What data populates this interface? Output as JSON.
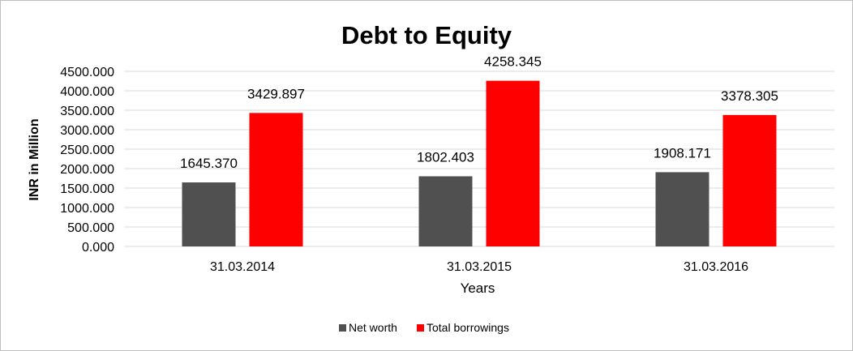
{
  "chart_data": {
    "type": "bar",
    "title": "Debt to Equity",
    "xlabel": "Years",
    "ylabel": "INR in Million",
    "categories": [
      "31.03.2014",
      "31.03.2015",
      "31.03.2016"
    ],
    "series": [
      {
        "name": "Net worth",
        "color": "#505050",
        "values": [
          1645.37,
          1802.403,
          1908.171
        ],
        "labels": [
          "1645.370",
          "1802.403",
          "1908.171"
        ]
      },
      {
        "name": "Total borrowings",
        "color": "#ff0000",
        "values": [
          3429.897,
          4258.345,
          3378.305
        ],
        "labels": [
          "3429.897",
          "4258.345",
          "3378.305"
        ]
      }
    ],
    "ylim": [
      0,
      4500
    ],
    "yticks": [
      0,
      500,
      1000,
      1500,
      2000,
      2500,
      3000,
      3500,
      4000,
      4500
    ],
    "ytick_labels": [
      "0.000",
      "500.000",
      "1000.000",
      "1500.000",
      "2000.000",
      "2500.000",
      "3000.000",
      "3500.000",
      "4000.000",
      "4500.000"
    ],
    "grid": true,
    "legend_position": "bottom-center"
  }
}
